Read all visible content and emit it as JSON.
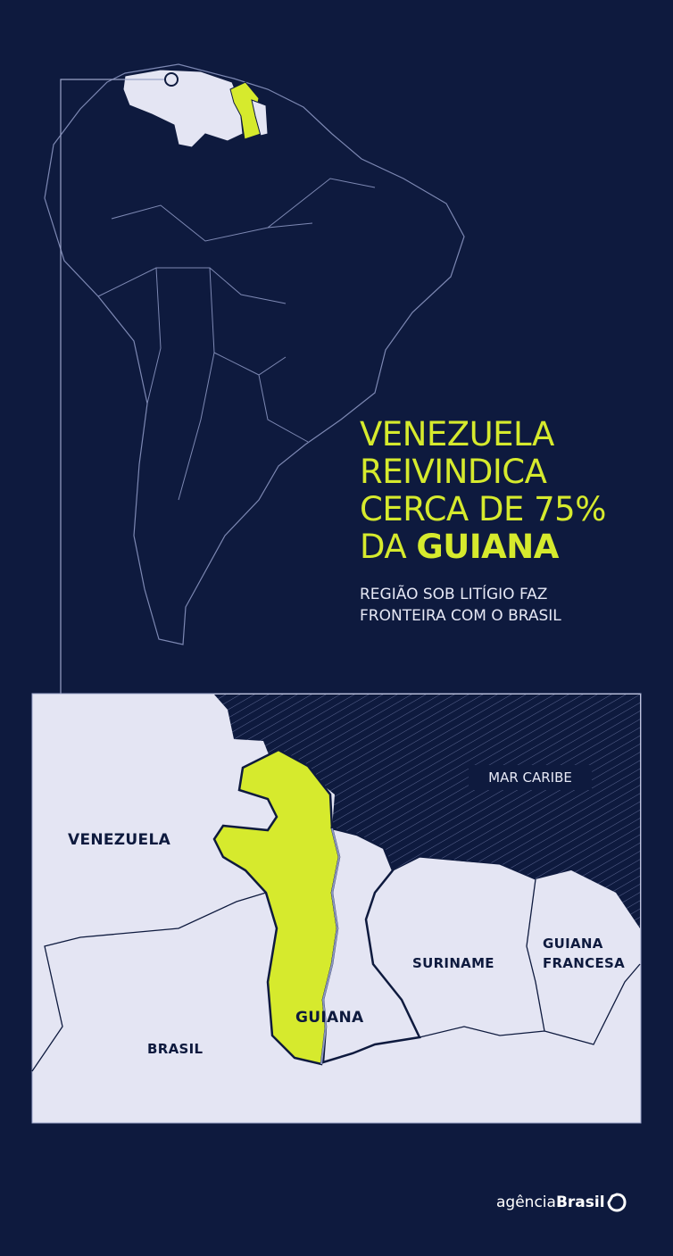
{
  "headline": {
    "line1": "VENEZUELA",
    "line2": "REIVINDICA",
    "line3": "CERCA DE 75%",
    "line4_prefix": "DA ",
    "line4_bold": "GUIANA"
  },
  "subtitle": {
    "line1": "REGIÃO SOB LITÍGIO FAZ",
    "line2": "FRONTEIRA COM O BRASIL"
  },
  "map_labels": {
    "venezuela": "VENEZUELA",
    "brasil": "BRASIL",
    "guiana": "GUIANA",
    "suriname": "SURINAME",
    "guiana_francesa_1": "GUIANA",
    "guiana_francesa_2": "FRANCESA",
    "sea": "MAR CARIBE"
  },
  "logo": {
    "prefix": "agência",
    "bold": "Brasil"
  },
  "colors": {
    "background": "#0e1a3e",
    "disputed_region": "#d6ea2d",
    "land": "#e4e5f3",
    "outline": "#9aa3c8"
  }
}
